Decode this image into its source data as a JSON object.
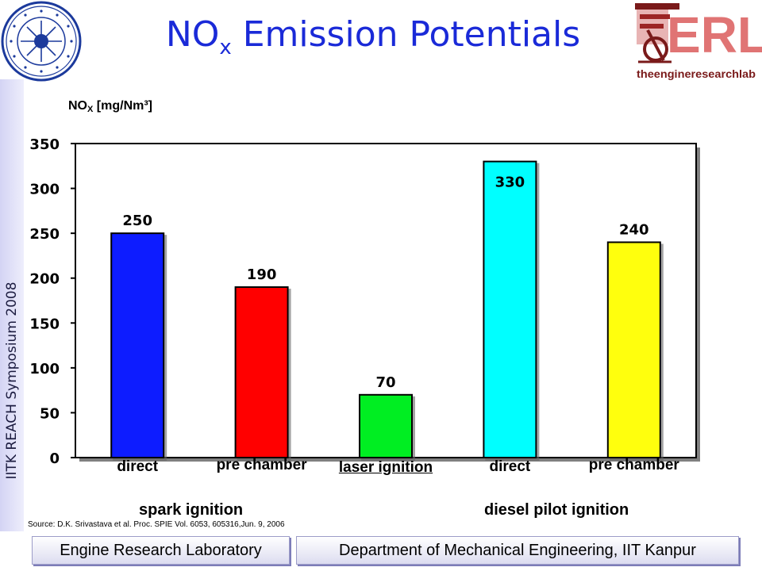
{
  "slide": {
    "title_main": "NO",
    "title_sub": "x",
    "title_rest": " Emission Potentials",
    "side_text": "IITK REACH Symposium 2008",
    "source": "Source: D.K. Srivastava et al. Proc. SPIE Vol. 6053, 605316,Jun. 9, 2006",
    "logo_right_text": "ERL",
    "logo_right_caption": "theengineresearchlab",
    "logo_left_text": "INDIAN INSTITUTE OF TECHNOLOGY KANPUR",
    "footer_left": "Engine Research Laboratory",
    "footer_right": "Department of Mechanical Engineering, IIT Kanpur",
    "group_spark": "spark ignition",
    "group_diesel": "diesel pilot ignition"
  },
  "chart_data": {
    "type": "bar",
    "ylabel_main": "NO",
    "ylabel_sub": "X",
    "ylabel_rest": " [mg/Nm³]",
    "categories": [
      "direct",
      "pre chamber",
      "laser ignition",
      "direct",
      "pre chamber"
    ],
    "values": [
      250,
      190,
      70,
      330,
      240
    ],
    "colors": [
      "#0a1aff",
      "#ff0000",
      "#00ee22",
      "#00ffff",
      "#ffff11"
    ],
    "ylim": [
      0,
      350
    ],
    "yticks": [
      0,
      50,
      100,
      150,
      200,
      250,
      300,
      350
    ],
    "grid": false,
    "legend": "none"
  }
}
